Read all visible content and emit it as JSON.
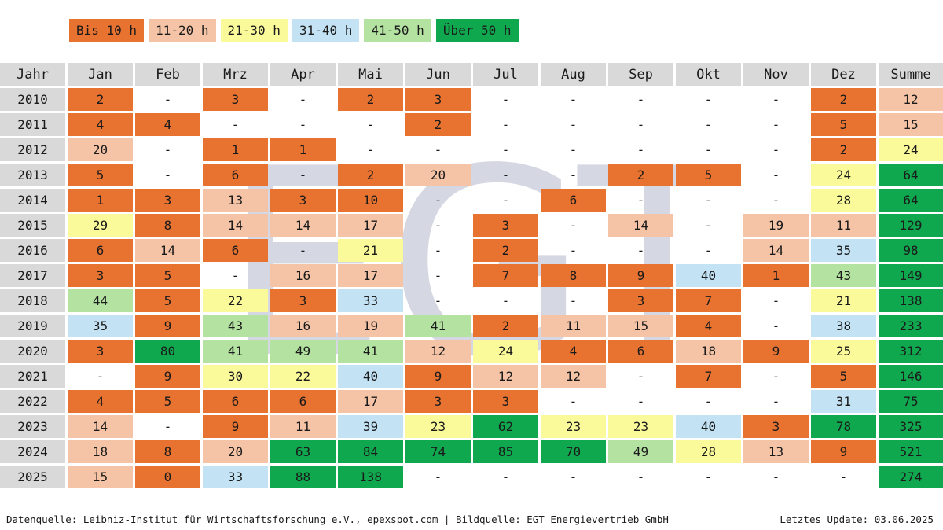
{
  "legend": [
    {
      "label": "Bis 10 h",
      "color": "#e87331"
    },
    {
      "label": "11-20 h",
      "color": "#f5c4a6"
    },
    {
      "label": "21-30 h",
      "color": "#fbfa9a"
    },
    {
      "label": "31-40 h",
      "color": "#c3e2f4"
    },
    {
      "label": "41-50 h",
      "color": "#b4e3a1"
    },
    {
      "label": "Über 50 h",
      "color": "#10a84e"
    }
  ],
  "watermark": "EGT",
  "footer": {
    "source": "Datenquelle: Leibniz-Institut für Wirtschaftsforschung e.V., epexspot.com | Bildquelle: EGT Energievertrieb GmbH",
    "update": "Letztes Update: 03.06.2025"
  },
  "chart_data": {
    "type": "table",
    "columns": [
      "Jahr",
      "Jan",
      "Feb",
      "Mrz",
      "Apr",
      "Mai",
      "Jun",
      "Jul",
      "Aug",
      "Sep",
      "Okt",
      "Nov",
      "Dez",
      "Summe"
    ],
    "rows": [
      [
        "2010",
        "2",
        "-",
        "3",
        "-",
        "2",
        "3",
        "-",
        "-",
        "-",
        "-",
        "-",
        "2",
        "12"
      ],
      [
        "2011",
        "4",
        "4",
        "-",
        "-",
        "-",
        "2",
        "-",
        "-",
        "-",
        "-",
        "-",
        "5",
        "15"
      ],
      [
        "2012",
        "20",
        "-",
        "1",
        "1",
        "-",
        "-",
        "-",
        "-",
        "-",
        "-",
        "-",
        "2",
        "24"
      ],
      [
        "2013",
        "5",
        "-",
        "6",
        "-",
        "2",
        "20",
        "-",
        "-",
        "2",
        "5",
        "-",
        "24",
        "64"
      ],
      [
        "2014",
        "1",
        "3",
        "13",
        "3",
        "10",
        "-",
        "-",
        "6",
        "-",
        "-",
        "-",
        "28",
        "64"
      ],
      [
        "2015",
        "29",
        "8",
        "14",
        "14",
        "17",
        "-",
        "3",
        "-",
        "14",
        "-",
        "19",
        "11",
        "129"
      ],
      [
        "2016",
        "6",
        "14",
        "6",
        "-",
        "21",
        "-",
        "2",
        "-",
        "-",
        "-",
        "14",
        "35",
        "98"
      ],
      [
        "2017",
        "3",
        "5",
        "-",
        "16",
        "17",
        "-",
        "7",
        "8",
        "9",
        "40",
        "1",
        "43",
        "149"
      ],
      [
        "2018",
        "44",
        "5",
        "22",
        "3",
        "33",
        "-",
        "-",
        "-",
        "3",
        "7",
        "-",
        "21",
        "138"
      ],
      [
        "2019",
        "35",
        "9",
        "43",
        "16",
        "19",
        "41",
        "2",
        "11",
        "15",
        "4",
        "-",
        "38",
        "233"
      ],
      [
        "2020",
        "3",
        "80",
        "41",
        "49",
        "41",
        "12",
        "24",
        "4",
        "6",
        "18",
        "9",
        "25",
        "312"
      ],
      [
        "2021",
        "-",
        "9",
        "30",
        "22",
        "40",
        "9",
        "12",
        "12",
        "-",
        "7",
        "-",
        "5",
        "146"
      ],
      [
        "2022",
        "4",
        "5",
        "6",
        "6",
        "17",
        "3",
        "3",
        "-",
        "-",
        "-",
        "-",
        "31",
        "75"
      ],
      [
        "2023",
        "14",
        "-",
        "9",
        "11",
        "39",
        "23",
        "62",
        "23",
        "23",
        "40",
        "3",
        "78",
        "325"
      ],
      [
        "2024",
        "18",
        "8",
        "20",
        "63",
        "84",
        "74",
        "85",
        "70",
        "49",
        "28",
        "13",
        "9",
        "521"
      ],
      [
        "2025",
        "15",
        "0",
        "33",
        "88",
        "138",
        "-",
        "-",
        "-",
        "-",
        "-",
        "-",
        "-",
        "274"
      ]
    ]
  }
}
